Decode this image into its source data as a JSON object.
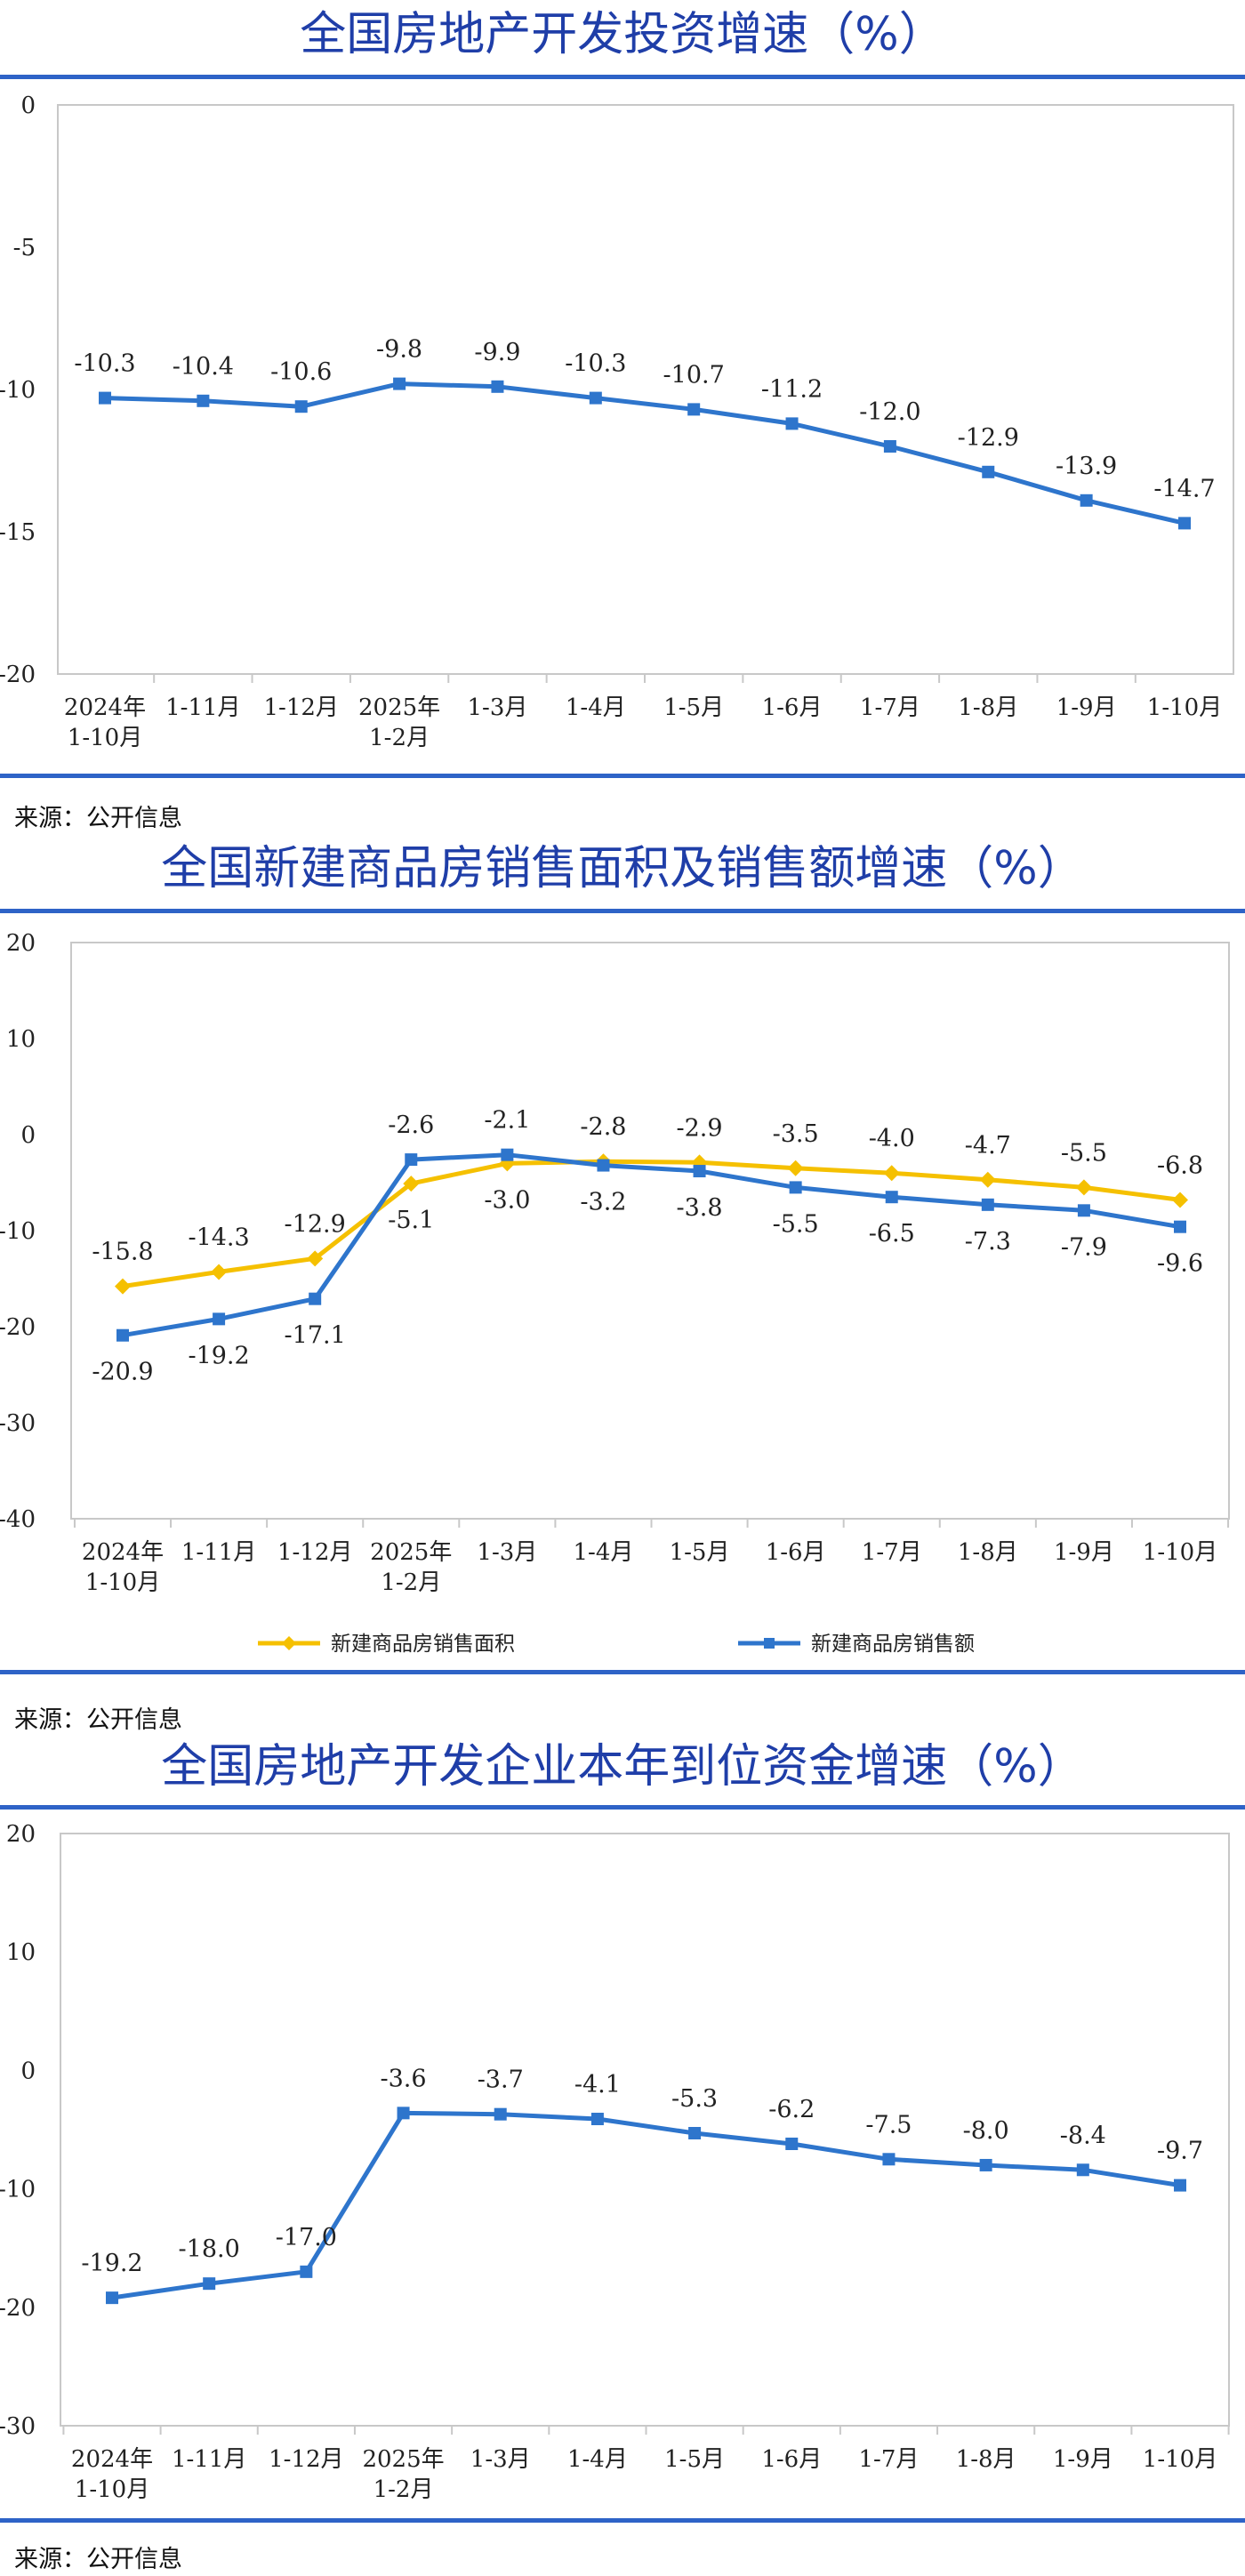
{
  "charts": [
    {
      "title": "全国房地产开发投资增速（%）",
      "source": "来源：公开信息",
      "chart_data": {
        "type": "line",
        "categories": [
          "2024年\n1-10月",
          "1-11月",
          "1-12月",
          "2025年\n1-2月",
          "1-3月",
          "1-4月",
          "1-5月",
          "1-6月",
          "1-7月",
          "1-8月",
          "1-9月",
          "1-10月"
        ],
        "ylim": [
          -20,
          0
        ],
        "yticks": [
          0,
          -5,
          -10,
          -15,
          -20
        ],
        "grid": false,
        "legend": "none",
        "series": [
          {
            "color": "#2e75cc",
            "values": [
              -10.3,
              -10.4,
              -10.6,
              -9.8,
              -9.9,
              -10.3,
              -10.7,
              -11.2,
              -12.0,
              -12.9,
              -13.9,
              -14.7
            ],
            "labels": [
              "-10.3",
              "-10.4",
              "-10.6",
              "-9.8",
              "-9.9",
              "-10.3",
              "-10.7",
              "-11.2",
              "-12.0",
              "-12.9",
              "-13.9",
              "-14.7"
            ],
            "label_pos": "above"
          }
        ]
      }
    },
    {
      "title": "全国新建商品房销售面积及销售额增速（%）",
      "source": "来源：公开信息",
      "chart_data": {
        "type": "line",
        "categories": [
          "2024年\n1-10月",
          "1-11月",
          "1-12月",
          "2025年\n1-2月",
          "1-3月",
          "1-4月",
          "1-5月",
          "1-6月",
          "1-7月",
          "1-8月",
          "1-9月",
          "1-10月"
        ],
        "ylim": [
          -40,
          20
        ],
        "yticks": [
          20,
          10,
          0,
          -10,
          -20,
          -30,
          -40
        ],
        "grid": false,
        "legend": "bottom",
        "series": [
          {
            "name": "新建商品房销售面积",
            "color": "#f5c000",
            "marker": "diamond",
            "values": [
              -15.8,
              -14.3,
              -12.9,
              -5.1,
              -3.0,
              -2.8,
              -2.9,
              -3.5,
              -4.0,
              -4.7,
              -5.5,
              -6.8
            ],
            "labels": [
              "-15.8",
              "-14.3",
              "-12.9",
              "-5.1",
              "-3.0",
              "-2.8",
              "-2.9",
              "-3.5",
              "-4.0",
              "-4.7",
              "-5.5",
              "-6.8"
            ],
            "label_pos": [
              "above",
              "above",
              "above",
              "below",
              "below",
              "above",
              "above",
              "above",
              "above",
              "above",
              "above",
              "above"
            ]
          },
          {
            "name": "新建商品房销售额",
            "color": "#2e75cc",
            "marker": "square",
            "values": [
              -20.9,
              -19.2,
              -17.1,
              -2.6,
              -2.1,
              -3.2,
              -3.8,
              -5.5,
              -6.5,
              -7.3,
              -7.9,
              -9.6
            ],
            "labels": [
              "-20.9",
              "-19.2",
              "-17.1",
              "-2.6",
              "-2.1",
              "-3.2",
              "-3.8",
              "-5.5",
              "-6.5",
              "-7.3",
              "-7.9",
              "-9.6"
            ],
            "label_pos": [
              "below",
              "below",
              "below",
              "above",
              "above",
              "below",
              "below",
              "below",
              "below",
              "below",
              "below",
              "below"
            ]
          }
        ]
      }
    },
    {
      "title": "全国房地产开发企业本年到位资金增速（%）",
      "source": "来源：公开信息",
      "chart_data": {
        "type": "line",
        "categories": [
          "2024年\n1-10月",
          "1-11月",
          "1-12月",
          "2025年\n1-2月",
          "1-3月",
          "1-4月",
          "1-5月",
          "1-6月",
          "1-7月",
          "1-8月",
          "1-9月",
          "1-10月"
        ],
        "ylim": [
          -30,
          20
        ],
        "yticks": [
          20,
          10,
          0,
          -10,
          -20,
          -30
        ],
        "grid": false,
        "legend": "none",
        "series": [
          {
            "color": "#2e75cc",
            "values": [
              -19.2,
              -18.0,
              -17.0,
              -3.6,
              -3.7,
              -4.1,
              -5.3,
              -6.2,
              -7.5,
              -8.0,
              -8.4,
              -9.7
            ],
            "labels": [
              "-19.2",
              "-18.0",
              "-17.0",
              "-3.6",
              "-3.7",
              "-4.1",
              "-5.3",
              "-6.2",
              "-7.5",
              "-8.0",
              "-8.4",
              "-9.7"
            ],
            "label_pos": "above"
          }
        ]
      }
    }
  ]
}
